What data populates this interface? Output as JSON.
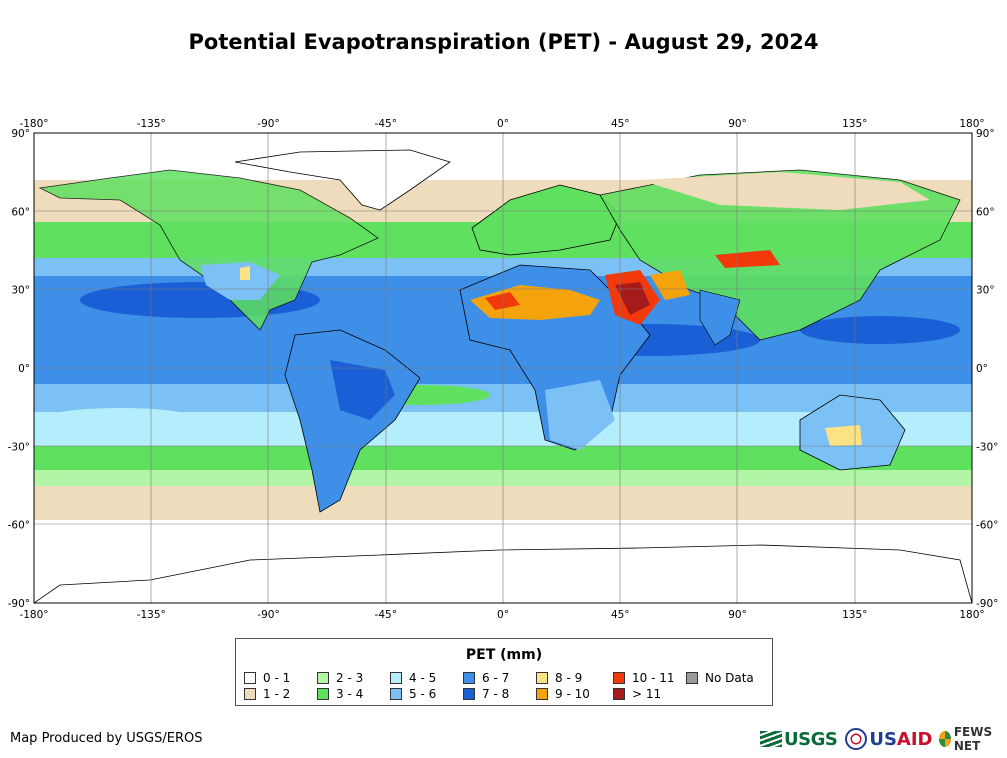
{
  "title": "Potential Evapotranspiration (PET) - August 29, 2024",
  "map": {
    "lon_ticks": [
      "-180°",
      "-135°",
      "-90°",
      "-45°",
      "0°",
      "45°",
      "90°",
      "135°",
      "180°"
    ],
    "lat_ticks": [
      "90°",
      "60°",
      "30°",
      "0°",
      "-30°",
      "-60°",
      "-90°"
    ],
    "ocean_color": "#3d8fe8",
    "land_outline_color": "#000000"
  },
  "legend": {
    "title": "PET (mm)",
    "items": [
      {
        "label": "0 - 1",
        "color": "#ffffff"
      },
      {
        "label": "1 - 2",
        "color": "#eedcbc"
      },
      {
        "label": "2 - 3",
        "color": "#b2f5a6"
      },
      {
        "label": "3 - 4",
        "color": "#5fe05f"
      },
      {
        "label": "4 - 5",
        "color": "#b4eefc"
      },
      {
        "label": "5 - 6",
        "color": "#7cc1f5"
      },
      {
        "label": "6 - 7",
        "color": "#3d8fe8"
      },
      {
        "label": "7 - 8",
        "color": "#1a5fd6"
      },
      {
        "label": "8 - 9",
        "color": "#fbe383"
      },
      {
        "label": "9 - 10",
        "color": "#f5a30d"
      },
      {
        "label": "10 - 11",
        "color": "#f2390c"
      },
      {
        "label": "> 11",
        "color": "#a51b1b"
      },
      {
        "label": "No Data",
        "color": "#9a9a9a"
      }
    ]
  },
  "credit": "Map Produced by USGS/EROS",
  "logos": {
    "usgs": "USGS",
    "usaid_prefix": "US",
    "usaid_suffix": "AID",
    "fews": "FEWS NET"
  }
}
